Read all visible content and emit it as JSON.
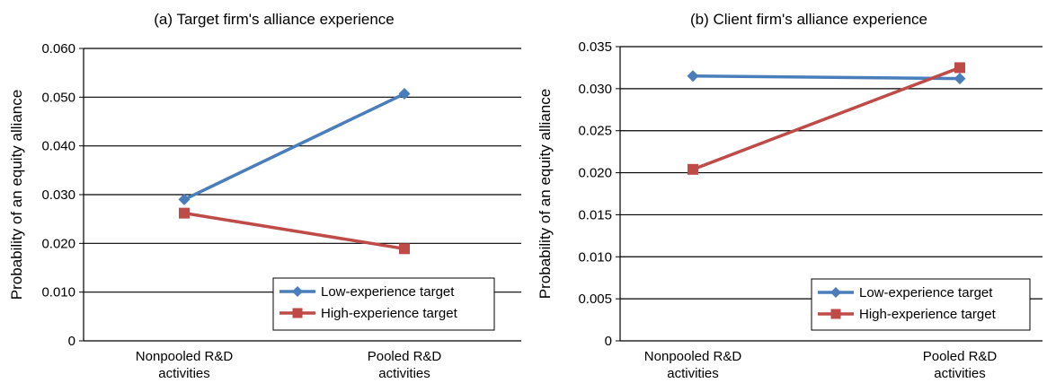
{
  "chart_data": [
    {
      "type": "line",
      "title": "(a) Target firm's alliance experience",
      "xlabel": "",
      "ylabel": "Probability of an equity alliance",
      "categories": [
        [
          "Nonpooled R&D",
          "activities"
        ],
        [
          "Pooled R&D",
          "activities"
        ]
      ],
      "ylim": [
        0,
        0.06
      ],
      "yticks": [
        0,
        0.01,
        0.02,
        0.03,
        0.04,
        0.05,
        0.06
      ],
      "ytick_labels": [
        "0",
        "0.010",
        "0.020",
        "0.030",
        "0.040",
        "0.050",
        "0.060"
      ],
      "grid": true,
      "legend_position": "bottom-right",
      "series": [
        {
          "name": "Low-experience target",
          "values": [
            0.029,
            0.0507
          ],
          "color": "#4a7ebb",
          "marker": "diamond"
        },
        {
          "name": "High-experience target",
          "values": [
            0.0262,
            0.0189
          ],
          "color": "#be4b48",
          "marker": "square"
        }
      ]
    },
    {
      "type": "line",
      "title": "(b) Client firm's alliance experience",
      "xlabel": "",
      "ylabel": "Probability of an equity alliance",
      "categories": [
        [
          "Nonpooled R&D",
          "activities"
        ],
        [
          "Pooled R&D",
          "activities"
        ]
      ],
      "ylim": [
        0,
        0.035
      ],
      "yticks": [
        0,
        0.005,
        0.01,
        0.015,
        0.02,
        0.025,
        0.03,
        0.035
      ],
      "ytick_labels": [
        "0",
        "0.005",
        "0.010",
        "0.015",
        "0.020",
        "0.025",
        "0.030",
        "0.035"
      ],
      "grid": true,
      "legend_position": "bottom-right",
      "series": [
        {
          "name": "Low-experience target",
          "values": [
            0.0315,
            0.0312
          ],
          "color": "#4a7ebb",
          "marker": "diamond"
        },
        {
          "name": "High-experience target",
          "values": [
            0.0204,
            0.0325
          ],
          "color": "#be4b48",
          "marker": "square"
        }
      ]
    }
  ]
}
